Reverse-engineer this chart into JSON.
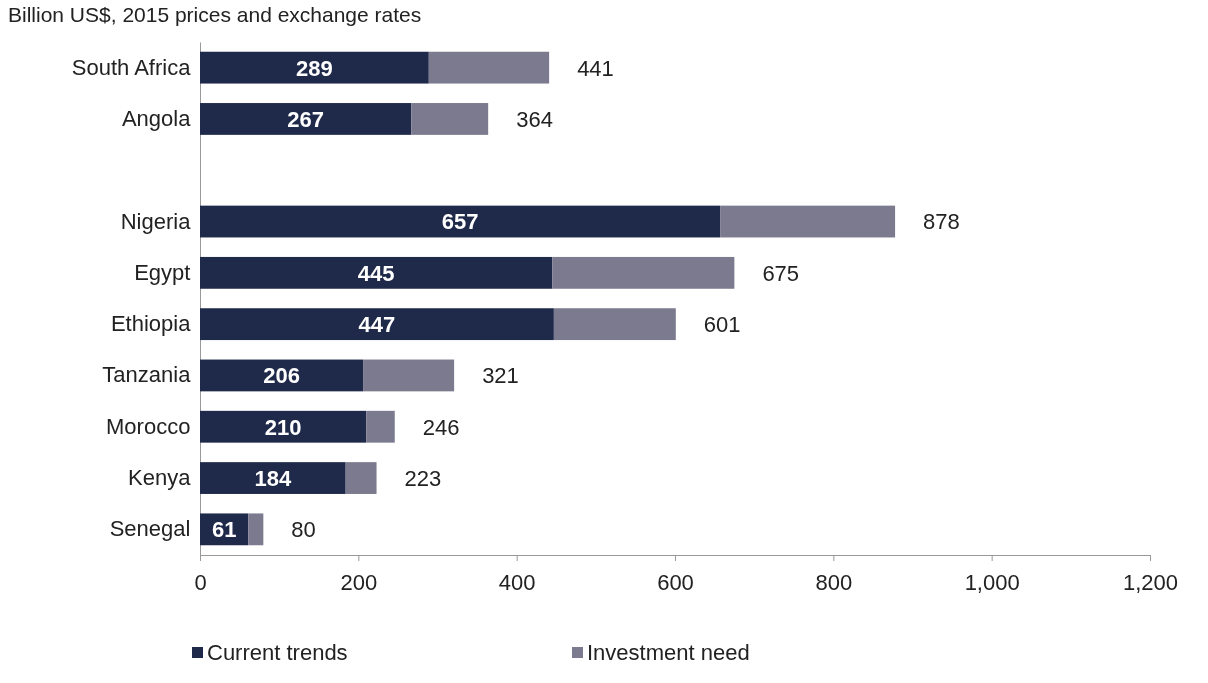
{
  "chart_data": {
    "type": "bar",
    "orientation": "horizontal",
    "stacked": true,
    "title": "Billion US$, 2015 prices and exchange rates",
    "categories": [
      "South Africa",
      "Angola",
      null,
      "Nigeria",
      "Egypt",
      "Ethiopia",
      "Tanzania",
      "Morocco",
      "Kenya",
      "Senegal"
    ],
    "series": [
      {
        "name": "Current trends",
        "color": "#1f2a4a",
        "values": [
          289,
          267,
          null,
          657,
          445,
          447,
          206,
          210,
          184,
          61
        ],
        "value_labels": [
          "289",
          "267",
          null,
          "657",
          "445",
          "447",
          "206",
          "210",
          "184",
          "61"
        ]
      },
      {
        "name": "Investment need",
        "color": "#7b7a8e",
        "values": [
          152,
          97,
          null,
          221,
          230,
          154,
          115,
          36,
          39,
          19
        ]
      }
    ],
    "totals": [
      "441",
      "364",
      null,
      "878",
      "675",
      "601",
      "321",
      "246",
      "223",
      "80"
    ],
    "xlim": [
      0,
      1200
    ],
    "xticks": [
      0,
      200,
      400,
      600,
      800,
      {
        "value": 1000,
        "label": "1,000"
      },
      {
        "value": 1200,
        "label": "1,200"
      }
    ],
    "legend": "bottom left"
  }
}
